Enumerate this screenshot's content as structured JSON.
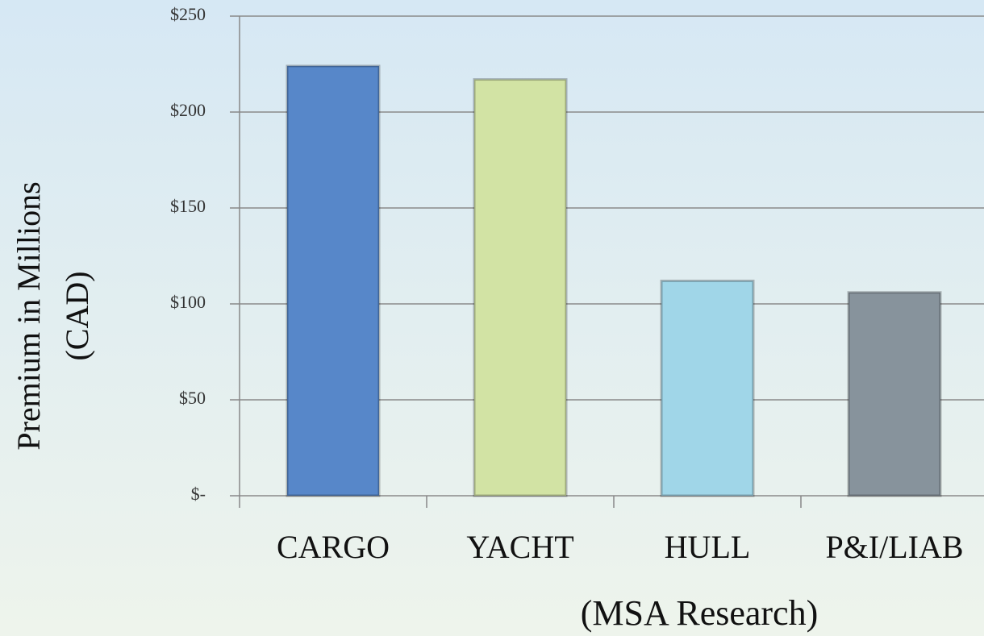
{
  "chart_data": {
    "type": "bar",
    "categories": [
      "CARGO",
      "YACHT",
      "HULL",
      "P&I/LIAB"
    ],
    "values": [
      224,
      217,
      112,
      106
    ],
    "colors": [
      "#5787c9",
      "#d2e3a4",
      "#a0d6e8",
      "#87939c"
    ],
    "ylim": [
      0,
      250
    ],
    "yticks": [
      {
        "value": 0,
        "label": "$-"
      },
      {
        "value": 50,
        "label": "$50"
      },
      {
        "value": 100,
        "label": "$100"
      },
      {
        "value": 150,
        "label": "$150"
      },
      {
        "value": 200,
        "label": "$200"
      },
      {
        "value": 250,
        "label": "$250"
      }
    ],
    "grid": true,
    "ylabel": [
      "Premium in Millions",
      "(CAD)"
    ],
    "xlabel": "(MSA Research)"
  }
}
